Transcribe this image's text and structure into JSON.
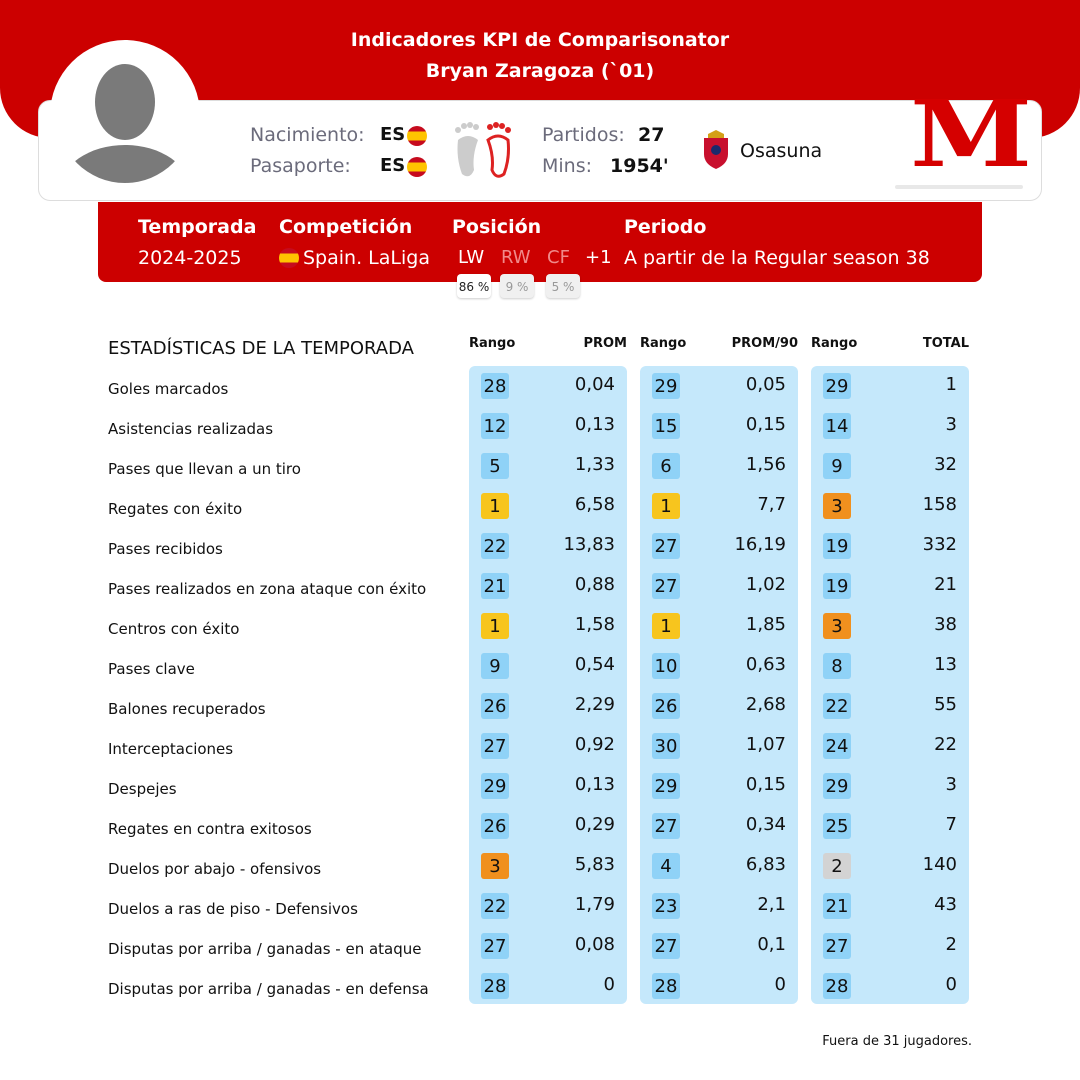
{
  "header": {
    "title": "Indicadores KPI de Comparisonator",
    "subtitle": "Bryan Zaragoza (`01)"
  },
  "info": {
    "birth_label": "Nacimiento:",
    "birth": "ES",
    "passport_label": "Pasaporte:",
    "passport": "ES",
    "matches_label": "Partidos:",
    "matches": 27,
    "mins_label": "Mins:",
    "mins": "1954'",
    "club": "Osasuna",
    "logo": "M"
  },
  "season": {
    "labels": [
      "Temporada",
      "Competición",
      "Posición",
      "Periodo"
    ],
    "season": "2024-2025",
    "competition": "Spain. LaLiga",
    "positions": [
      {
        "name": "LW",
        "share": "86 %"
      },
      {
        "name": "RW",
        "share": "9 %"
      },
      {
        "name": "CF",
        "share": "5 %"
      }
    ],
    "more": "+1",
    "period": "A partir de la Regular season 38"
  },
  "table": {
    "title": "ESTADÍSTICAS DE LA TEMPORADA",
    "columns": [
      "Rango",
      "PROM",
      "Rango",
      "PROM/90",
      "Rango",
      "TOTAL"
    ],
    "rows": [
      {
        "label": "Goles marcados",
        "values": [
          28,
          "0,04",
          29,
          "0,05",
          29,
          1
        ]
      },
      {
        "label": "Asistencias realizadas",
        "values": [
          12,
          "0,13",
          15,
          "0,15",
          14,
          3
        ]
      },
      {
        "label": "Pases que llevan a un tiro",
        "values": [
          5,
          "1,33",
          6,
          "1,56",
          9,
          32
        ]
      },
      {
        "label": "Regates con éxito",
        "values": [
          1,
          "6,58",
          1,
          "7,7",
          3,
          158
        ]
      },
      {
        "label": "Pases recibidos",
        "values": [
          22,
          "13,83",
          27,
          "16,19",
          19,
          332
        ]
      },
      {
        "label": "Pases realizados en zona ataque con éxito",
        "values": [
          21,
          "0,88",
          27,
          "1,02",
          19,
          21
        ]
      },
      {
        "label": "Centros con éxito",
        "values": [
          1,
          "1,58",
          1,
          "1,85",
          3,
          38
        ]
      },
      {
        "label": "Pases clave",
        "values": [
          9,
          "0,54",
          10,
          "0,63",
          8,
          13
        ]
      },
      {
        "label": "Balones recuperados",
        "values": [
          26,
          "2,29",
          26,
          "2,68",
          22,
          55
        ]
      },
      {
        "label": "Interceptaciones",
        "values": [
          27,
          "0,92",
          30,
          "1,07",
          24,
          22
        ]
      },
      {
        "label": "Despejes",
        "values": [
          29,
          "0,13",
          29,
          "0,15",
          29,
          3
        ]
      },
      {
        "label": "Regates en contra exitosos",
        "values": [
          26,
          "0,29",
          27,
          "0,34",
          25,
          7
        ]
      },
      {
        "label": "Duelos por abajo - ofensivos",
        "values": [
          3,
          "5,83",
          4,
          "6,83",
          2,
          140
        ]
      },
      {
        "label": "Duelos a ras de piso - Defensivos",
        "values": [
          22,
          "1,79",
          23,
          "2,1",
          21,
          43
        ]
      },
      {
        "label": "Disputas por arriba / ganadas - en ataque",
        "values": [
          27,
          "0,08",
          27,
          "0,1",
          27,
          2
        ]
      },
      {
        "label": "Disputas por arriba / ganadas - en defensa",
        "values": [
          28,
          "0",
          28,
          "0",
          28,
          0
        ]
      }
    ]
  },
  "footer": "Fuera de 31 jugadores."
}
